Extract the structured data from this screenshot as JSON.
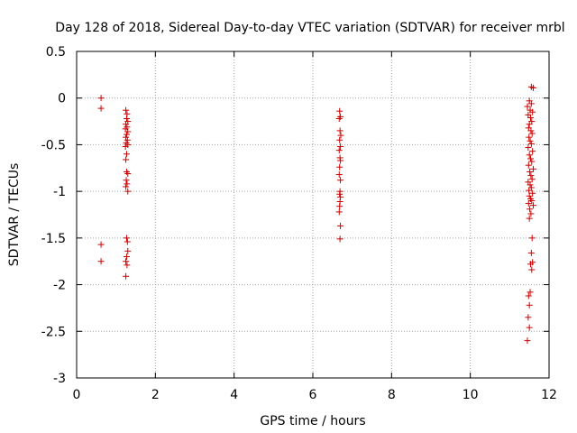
{
  "chart_data": {
    "type": "scatter",
    "title": "Day 128 of 2018, Sidereal Day-to-day VTEC variation (SDTVAR) for receiver mrbl",
    "xlabel": "GPS time / hours",
    "ylabel": "SDTVAR / TECUs",
    "xlim": [
      0,
      12
    ],
    "ylim": [
      -3,
      0.5
    ],
    "xticks": [
      "0",
      "2",
      "4",
      "6",
      "8",
      "10",
      "12"
    ],
    "yticks": [
      "0.5",
      "0",
      "-0.5",
      "-1",
      "-1.5",
      "-2",
      "-2.5",
      "-3"
    ],
    "grid": true,
    "marker": "+",
    "color": "#cc0000",
    "points": [
      [
        0.62,
        0.0
      ],
      [
        0.62,
        -0.11
      ],
      [
        0.62,
        -1.57
      ],
      [
        0.62,
        -1.75
      ],
      [
        1.25,
        -0.13
      ],
      [
        1.28,
        -0.17
      ],
      [
        1.27,
        -0.22
      ],
      [
        1.3,
        -0.25
      ],
      [
        1.25,
        -0.28
      ],
      [
        1.28,
        -0.31
      ],
      [
        1.24,
        -0.33
      ],
      [
        1.3,
        -0.36
      ],
      [
        1.27,
        -0.39
      ],
      [
        1.25,
        -0.42
      ],
      [
        1.29,
        -0.45
      ],
      [
        1.26,
        -0.48
      ],
      [
        1.3,
        -0.5
      ],
      [
        1.24,
        -0.52
      ],
      [
        1.27,
        -0.6
      ],
      [
        1.25,
        -0.66
      ],
      [
        1.27,
        -0.79
      ],
      [
        1.3,
        -0.81
      ],
      [
        1.26,
        -0.88
      ],
      [
        1.28,
        -0.92
      ],
      [
        1.25,
        -0.95
      ],
      [
        1.3,
        -1.0
      ],
      [
        1.27,
        -1.5
      ],
      [
        1.29,
        -1.54
      ],
      [
        1.3,
        -1.64
      ],
      [
        1.27,
        -1.7
      ],
      [
        1.25,
        -1.75
      ],
      [
        1.28,
        -1.79
      ],
      [
        1.25,
        -1.91
      ],
      [
        6.68,
        -0.14
      ],
      [
        6.7,
        -0.2
      ],
      [
        6.67,
        -0.22
      ],
      [
        6.69,
        -0.35
      ],
      [
        6.71,
        -0.4
      ],
      [
        6.68,
        -0.45
      ],
      [
        6.7,
        -0.52
      ],
      [
        6.67,
        -0.56
      ],
      [
        6.69,
        -0.64
      ],
      [
        6.7,
        -0.67
      ],
      [
        6.68,
        -0.74
      ],
      [
        6.67,
        -0.82
      ],
      [
        6.7,
        -0.88
      ],
      [
        6.69,
        -1.0
      ],
      [
        6.68,
        -1.03
      ],
      [
        6.7,
        -1.06
      ],
      [
        6.69,
        -1.11
      ],
      [
        6.68,
        -1.16
      ],
      [
        6.67,
        -1.22
      ],
      [
        6.7,
        -1.37
      ],
      [
        6.69,
        -1.51
      ],
      [
        11.55,
        0.12
      ],
      [
        11.6,
        0.11
      ],
      [
        11.5,
        -0.03
      ],
      [
        11.55,
        -0.06
      ],
      [
        11.45,
        -0.09
      ],
      [
        11.52,
        -0.13
      ],
      [
        11.58,
        -0.15
      ],
      [
        11.47,
        -0.18
      ],
      [
        11.53,
        -0.21
      ],
      [
        11.56,
        -0.25
      ],
      [
        11.5,
        -0.28
      ],
      [
        11.48,
        -0.32
      ],
      [
        11.54,
        -0.35
      ],
      [
        11.57,
        -0.38
      ],
      [
        11.49,
        -0.42
      ],
      [
        11.52,
        -0.46
      ],
      [
        11.55,
        -0.49
      ],
      [
        11.47,
        -0.53
      ],
      [
        11.58,
        -0.57
      ],
      [
        11.5,
        -0.61
      ],
      [
        11.53,
        -0.65
      ],
      [
        11.56,
        -0.68
      ],
      [
        11.48,
        -0.72
      ],
      [
        11.6,
        -0.76
      ],
      [
        11.51,
        -0.79
      ],
      [
        11.54,
        -0.83
      ],
      [
        11.57,
        -0.87
      ],
      [
        11.47,
        -0.9
      ],
      [
        11.52,
        -0.93
      ],
      [
        11.55,
        -0.96
      ],
      [
        11.49,
        -0.99
      ],
      [
        11.58,
        -1.02
      ],
      [
        11.5,
        -1.05
      ],
      [
        11.53,
        -1.08
      ],
      [
        11.56,
        -1.1
      ],
      [
        11.48,
        -1.13
      ],
      [
        11.6,
        -1.15
      ],
      [
        11.51,
        -1.19
      ],
      [
        11.54,
        -1.24
      ],
      [
        11.5,
        -1.29
      ],
      [
        11.57,
        -1.5
      ],
      [
        11.55,
        -1.66
      ],
      [
        11.58,
        -1.76
      ],
      [
        11.53,
        -1.78
      ],
      [
        11.56,
        -1.84
      ],
      [
        11.52,
        -2.08
      ],
      [
        11.48,
        -2.12
      ],
      [
        11.5,
        -2.22
      ],
      [
        11.47,
        -2.35
      ],
      [
        11.5,
        -2.46
      ],
      [
        11.45,
        -2.6
      ]
    ]
  }
}
